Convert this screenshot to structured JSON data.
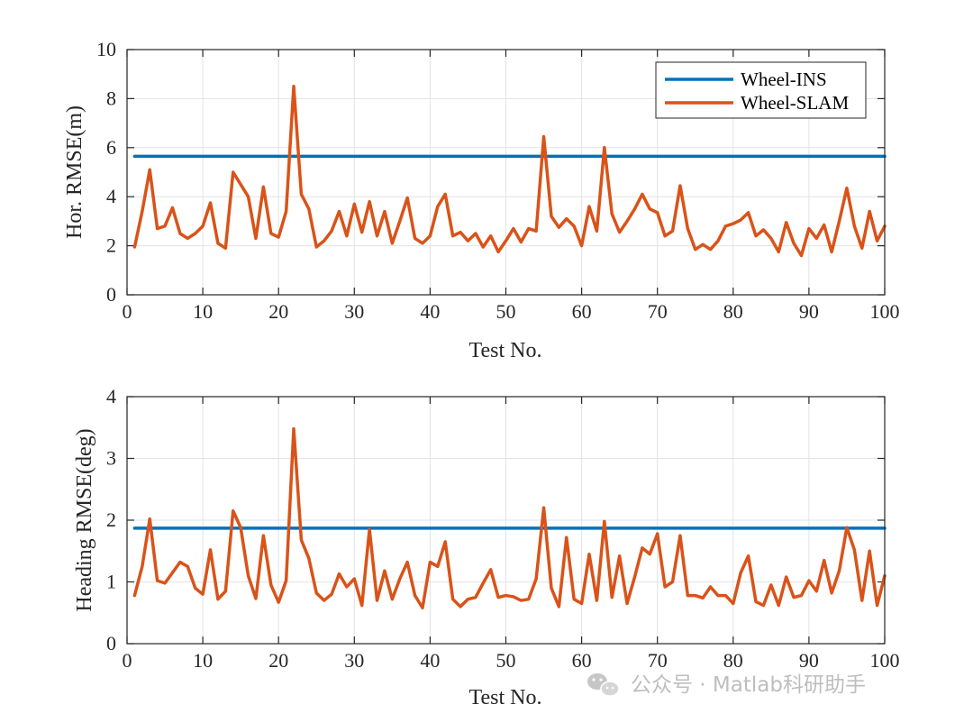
{
  "chart_data": [
    {
      "type": "line",
      "xlabel": "Test No.",
      "ylabel": "Hor. RMSE(m)",
      "xlim": [
        0,
        100
      ],
      "ylim": [
        0,
        10
      ],
      "xticks": [
        "0",
        "10",
        "20",
        "30",
        "40",
        "50",
        "60",
        "70",
        "80",
        "90",
        "100"
      ],
      "yticks": [
        "0",
        "2",
        "4",
        "6",
        "8",
        "10"
      ],
      "grid": true,
      "legend_position": "top-right",
      "series": [
        {
          "name": "Wheel-INS",
          "color": "#0072BD",
          "x": [
            1,
            100
          ],
          "values": [
            5.65,
            5.65
          ]
        },
        {
          "name": "Wheel-SLAM",
          "color": "#D95319",
          "values": [
            1.95,
            3.4,
            5.1,
            2.7,
            2.8,
            3.55,
            2.5,
            2.3,
            2.5,
            2.8,
            3.75,
            2.1,
            1.9,
            5.0,
            4.5,
            4.0,
            2.3,
            4.4,
            2.5,
            2.35,
            3.4,
            8.5,
            4.1,
            3.5,
            1.95,
            2.2,
            2.6,
            3.4,
            2.4,
            3.7,
            2.55,
            3.8,
            2.4,
            3.4,
            2.1,
            3.0,
            3.95,
            2.3,
            2.1,
            2.4,
            3.6,
            4.1,
            2.4,
            2.55,
            2.2,
            2.5,
            1.95,
            2.4,
            1.75,
            2.2,
            2.7,
            2.15,
            2.7,
            2.6,
            6.45,
            3.2,
            2.75,
            3.1,
            2.8,
            2.0,
            3.6,
            2.6,
            6.0,
            3.3,
            2.55,
            3.0,
            3.5,
            4.1,
            3.5,
            3.35,
            2.4,
            2.6,
            4.45,
            2.7,
            1.85,
            2.05,
            1.85,
            2.2,
            2.8,
            2.9,
            3.05,
            3.35,
            2.4,
            2.65,
            2.3,
            1.75,
            2.95,
            2.1,
            1.6,
            2.7,
            2.3,
            2.85,
            1.75,
            3.0,
            4.35,
            2.8,
            1.9,
            3.4,
            2.2,
            2.8
          ]
        }
      ]
    },
    {
      "type": "line",
      "xlabel": "Test No.",
      "ylabel": "Heading RMSE(deg)",
      "xlim": [
        0,
        100
      ],
      "ylim": [
        0,
        4
      ],
      "xticks": [
        "0",
        "10",
        "20",
        "30",
        "40",
        "50",
        "60",
        "70",
        "80",
        "90",
        "100"
      ],
      "yticks": [
        "0",
        "1",
        "2",
        "3",
        "4"
      ],
      "grid": true,
      "series": [
        {
          "name": "Wheel-INS",
          "color": "#0072BD",
          "x": [
            1,
            100
          ],
          "values": [
            1.87,
            1.87
          ]
        },
        {
          "name": "Wheel-SLAM",
          "color": "#D95319",
          "values": [
            0.78,
            1.25,
            2.02,
            1.02,
            0.98,
            1.15,
            1.32,
            1.25,
            0.9,
            0.8,
            1.52,
            0.72,
            0.85,
            2.15,
            1.88,
            1.1,
            0.73,
            1.75,
            0.95,
            0.67,
            1.02,
            3.48,
            1.68,
            1.38,
            0.82,
            0.7,
            0.8,
            1.13,
            0.92,
            1.05,
            0.62,
            1.85,
            0.7,
            1.18,
            0.72,
            1.05,
            1.32,
            0.78,
            0.58,
            1.32,
            1.25,
            1.65,
            0.72,
            0.6,
            0.72,
            0.75,
            0.98,
            1.2,
            0.75,
            0.78,
            0.76,
            0.7,
            0.72,
            1.05,
            2.2,
            0.9,
            0.6,
            1.72,
            0.72,
            0.65,
            1.45,
            0.7,
            1.98,
            0.75,
            1.42,
            0.65,
            1.08,
            1.55,
            1.45,
            1.78,
            0.92,
            1.0,
            1.75,
            0.78,
            0.78,
            0.74,
            0.92,
            0.78,
            0.78,
            0.65,
            1.15,
            1.42,
            0.68,
            0.62,
            0.95,
            0.62,
            1.08,
            0.75,
            0.78,
            1.02,
            0.85,
            1.35,
            0.82,
            1.18,
            1.88,
            1.52,
            0.7,
            1.5,
            0.62,
            1.1
          ]
        }
      ]
    }
  ],
  "watermark": {
    "text": "公众号 · Matlab科研助手",
    "icon": "wechat-icon"
  }
}
